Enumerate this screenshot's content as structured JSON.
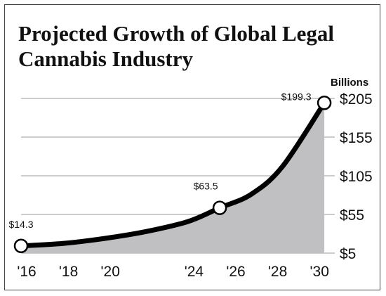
{
  "chart_data": {
    "type": "area",
    "title": "Projected Growth of Global Legal Cannabis Industry",
    "unit_label": "Billions",
    "x": [
      2016,
      2025.5,
      2030.5
    ],
    "y": [
      14.3,
      63.5,
      199.3
    ],
    "curve": [
      {
        "x": 2016,
        "y": 14.3
      },
      {
        "x": 2018,
        "y": 17.5
      },
      {
        "x": 2020,
        "y": 24
      },
      {
        "x": 2022,
        "y": 33
      },
      {
        "x": 2024,
        "y": 46
      },
      {
        "x": 2025.5,
        "y": 63.5
      },
      {
        "x": 2027,
        "y": 81
      },
      {
        "x": 2028.5,
        "y": 117
      },
      {
        "x": 2030.5,
        "y": 199.3
      }
    ],
    "xlim": [
      2016,
      2031
    ],
    "ylim": [
      5,
      205
    ],
    "yticks": [
      5,
      55,
      105,
      155,
      205
    ],
    "ytick_labels": [
      "$5",
      "$55",
      "$105",
      "$155",
      "$205"
    ],
    "xticks": [
      2016,
      2018,
      2020,
      2024,
      2026,
      2028,
      2030
    ],
    "xtick_labels": [
      "'16",
      "'18",
      "'20",
      "'24",
      "'26",
      "'28",
      "'30"
    ],
    "data_labels": [
      "$14.3",
      "$63.5",
      "$199.3"
    ],
    "grid": "horizontal",
    "fill_color": "#c0c0c2",
    "line_color": "#000000",
    "grid_color": "#9a9a9a"
  }
}
